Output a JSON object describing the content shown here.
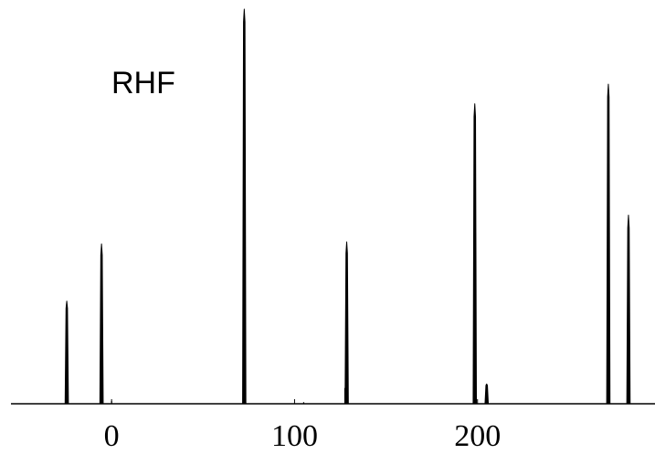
{
  "chart_data": {
    "type": "line",
    "title": "",
    "xlabel": "",
    "ylabel": "",
    "annotation": "RHF",
    "x_ticks": [
      0,
      100,
      200
    ],
    "x_tick_labels": [
      "0",
      "100",
      "200"
    ],
    "xlim": [
      -55,
      297
    ],
    "ylim": [
      0,
      1
    ],
    "grid": false,
    "legend": "none",
    "line_color": "#000000",
    "peaks": [
      {
        "x": -24.5,
        "y": 0.26
      },
      {
        "x": -5.5,
        "y": 0.405
      },
      {
        "x": 72.5,
        "y": 1.0
      },
      {
        "x": 128.5,
        "y": 0.41
      },
      {
        "x": 198.5,
        "y": 0.76
      },
      {
        "x": 205.0,
        "y": 0.05
      },
      {
        "x": 271.5,
        "y": 0.81
      },
      {
        "x": 282.5,
        "y": 0.478
      }
    ],
    "minor_features": [
      {
        "x": 0.0,
        "y": 0.007
      },
      {
        "x": 105.0,
        "y": 0.004
      },
      {
        "x": 127.5,
        "y": 0.04
      },
      {
        "x": 198.0,
        "y": 0.02
      }
    ]
  }
}
